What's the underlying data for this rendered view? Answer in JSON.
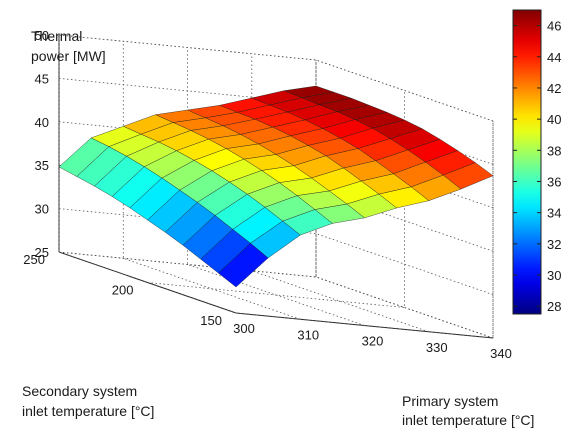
{
  "chart_data": {
    "type": "surface",
    "colormap": "jet",
    "grid": true,
    "x": {
      "label_lines": [
        "Primary system",
        "inlet temperature [°C]"
      ],
      "range": [
        300,
        340
      ],
      "ticks": [
        300,
        310,
        320,
        330,
        340
      ]
    },
    "y": {
      "label_lines": [
        "Secondary system",
        "inlet temperature [°C]"
      ],
      "range": [
        150,
        250
      ],
      "ticks": [
        150,
        200,
        250
      ]
    },
    "z": {
      "label_lines": [
        "Thermal",
        "power [MW]"
      ],
      "range": [
        25,
        50
      ],
      "ticks": [
        25,
        30,
        35,
        40,
        45,
        50
      ]
    },
    "colorbar": {
      "range": [
        27.5,
        47
      ],
      "ticks": [
        28,
        30,
        32,
        34,
        36,
        38,
        40,
        42,
        44,
        46
      ]
    },
    "primary_temp_C": [
      300,
      305,
      310,
      315,
      320,
      325,
      330,
      335,
      340
    ],
    "secondary_temp_C": [
      150,
      160,
      170,
      180,
      190,
      200,
      210,
      220,
      230,
      240,
      250
    ],
    "power_MW_columns_by_primary": [
      [
        28.0,
        28.9,
        29.8,
        30.7,
        31.5,
        32.2,
        32.9,
        33.5,
        34.0,
        34.4,
        34.8
      ],
      [
        31.7,
        32.7,
        33.6,
        34.5,
        35.3,
        36.0,
        36.7,
        37.3,
        37.8,
        38.2,
        38.5
      ],
      [
        34.7,
        35.6,
        36.5,
        37.3,
        38.0,
        38.6,
        39.1,
        39.5,
        39.8,
        40.0,
        40.2
      ],
      [
        36.4,
        37.3,
        38.2,
        39.0,
        39.7,
        40.3,
        40.8,
        41.2,
        41.5,
        41.7,
        41.9
      ],
      [
        37.4,
        38.3,
        39.1,
        39.9,
        40.6,
        41.2,
        41.7,
        42.1,
        42.4,
        42.6,
        42.8
      ],
      [
        38.9,
        39.8,
        40.6,
        41.4,
        42.1,
        42.6,
        43.0,
        43.3,
        43.5,
        43.6,
        43.7
      ],
      [
        40.1,
        41.0,
        41.8,
        42.6,
        43.3,
        43.8,
        44.2,
        44.5,
        44.7,
        44.8,
        44.9
      ],
      [
        41.8,
        42.7,
        43.5,
        44.2,
        44.8,
        45.3,
        45.6,
        45.8,
        45.9,
        46.0,
        46.1
      ],
      [
        43.7,
        44.5,
        45.2,
        45.8,
        46.3,
        46.6,
        46.8,
        46.9,
        47.0,
        47.0,
        47.0
      ]
    ]
  }
}
